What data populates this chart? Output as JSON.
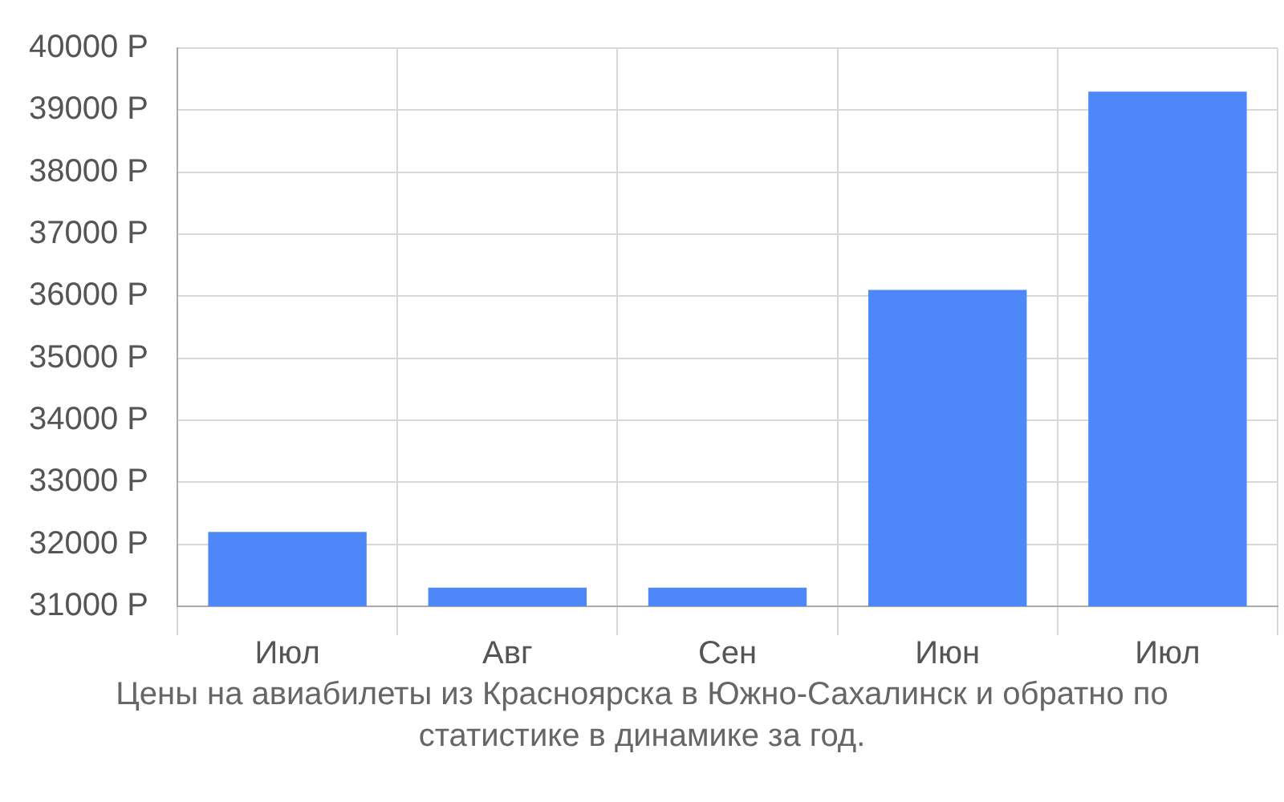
{
  "chart_data": {
    "type": "bar",
    "categories": [
      "Июл",
      "Авг",
      "Сен",
      "Июн",
      "Июл"
    ],
    "values": [
      32200,
      31300,
      31300,
      36100,
      39300
    ],
    "color": "#4e88f8",
    "ylim": [
      31000,
      40000
    ],
    "yticks": [
      {
        "value": 31000,
        "label": "31000 Р"
      },
      {
        "value": 32000,
        "label": "32000 Р"
      },
      {
        "value": 33000,
        "label": "33000 Р"
      },
      {
        "value": 34000,
        "label": "34000 Р"
      },
      {
        "value": 35000,
        "label": "35000 Р"
      },
      {
        "value": 36000,
        "label": "36000 Р"
      },
      {
        "value": 37000,
        "label": "37000 Р"
      },
      {
        "value": 38000,
        "label": "38000 Р"
      },
      {
        "value": 39000,
        "label": "39000 Р"
      },
      {
        "value": 40000,
        "label": "40000 Р"
      }
    ],
    "grid": true,
    "annotations": [
      "Цены на авиабилеты из Красноярска в Южно-Сахалинск и обратно по статистике в динамике за год."
    ]
  }
}
